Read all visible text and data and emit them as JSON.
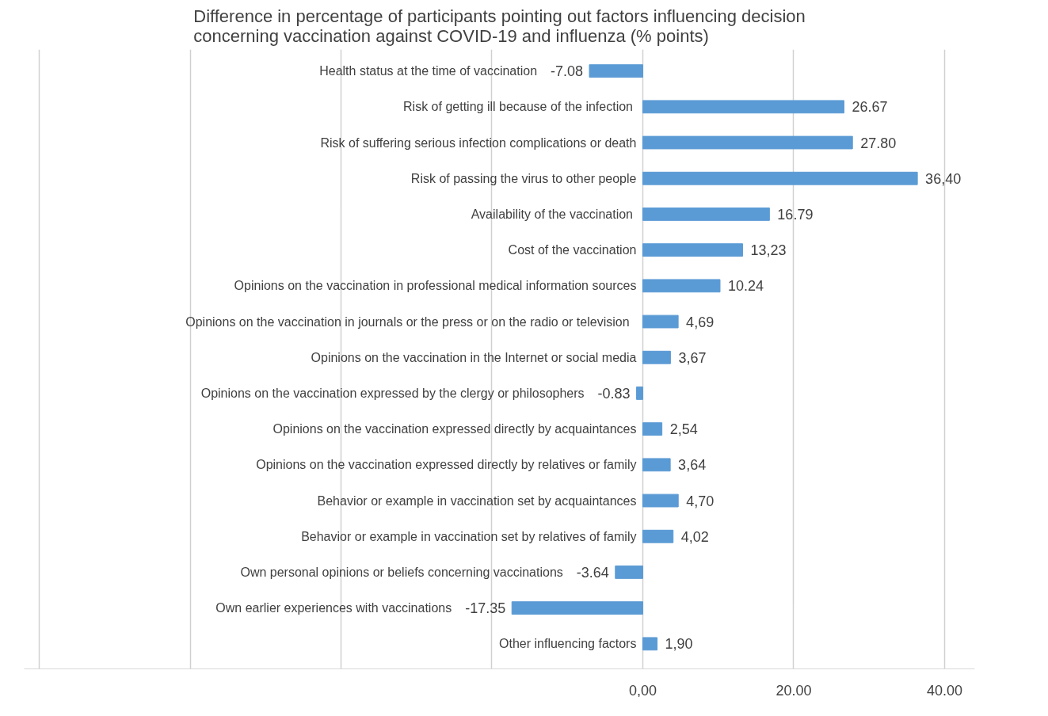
{
  "chart_data": {
    "type": "bar",
    "orientation": "horizontal",
    "title": "Difference in percentage of participants pointing out factors influencing decision\nconcerning vaccination against COVID-19 and influenza (% points)",
    "categories": [
      "Health status at the time of vaccination",
      "Risk of  getting ill because of the infection",
      "Risk of suffering serious infection complications or death",
      "Risk of passing the virus to other people",
      "Availability of the  vaccination",
      "Cost of the vaccination",
      "Opinions on the vaccination in professional medical information sources",
      "Opinions on the vaccination  in  journals or the press or on the radio or television",
      "Opinions on the vaccination in the Internet or social media",
      "Opinions on the vaccination expressed by the clergy or philosophers",
      "Opinions on the vaccination expressed directly by acquaintances",
      "Opinions on the vaccination expressed directly by relatives or family",
      "Behavior or example in vaccination set by acquaintances",
      "Behavior or example in vaccination set by relatives of family",
      "Own personal opinions or beliefs concerning vaccinations",
      "Own earlier experiences with vaccinations",
      "Other influencing factors"
    ],
    "values": [
      -7.08,
      26.67,
      27.8,
      36.4,
      16.79,
      13.23,
      10.24,
      4.69,
      3.67,
      -0.83,
      2.54,
      3.64,
      4.7,
      4.02,
      -3.64,
      -17.35,
      1.9
    ],
    "value_labels": [
      "-7.08",
      "26.67",
      "27.80",
      "36,40",
      "16.79",
      "13,23",
      "10.24",
      "4,69",
      "3,67",
      "-0.83",
      "2,54",
      "3,64",
      "4,70",
      "4,02",
      "-3.64",
      "-17.35",
      "1,90"
    ],
    "color": "#5b9bd5",
    "xticks": [
      {
        "value": -80,
        "label": null
      },
      {
        "value": -60,
        "label": null
      },
      {
        "value": -40,
        "label": null
      },
      {
        "value": -20,
        "label": null
      },
      {
        "value": 0,
        "label": "0,00"
      },
      {
        "value": 20,
        "label": "20.00"
      },
      {
        "value": 40,
        "label": "40.00"
      }
    ],
    "xlim": [
      -82,
      44
    ],
    "grid": "x"
  }
}
